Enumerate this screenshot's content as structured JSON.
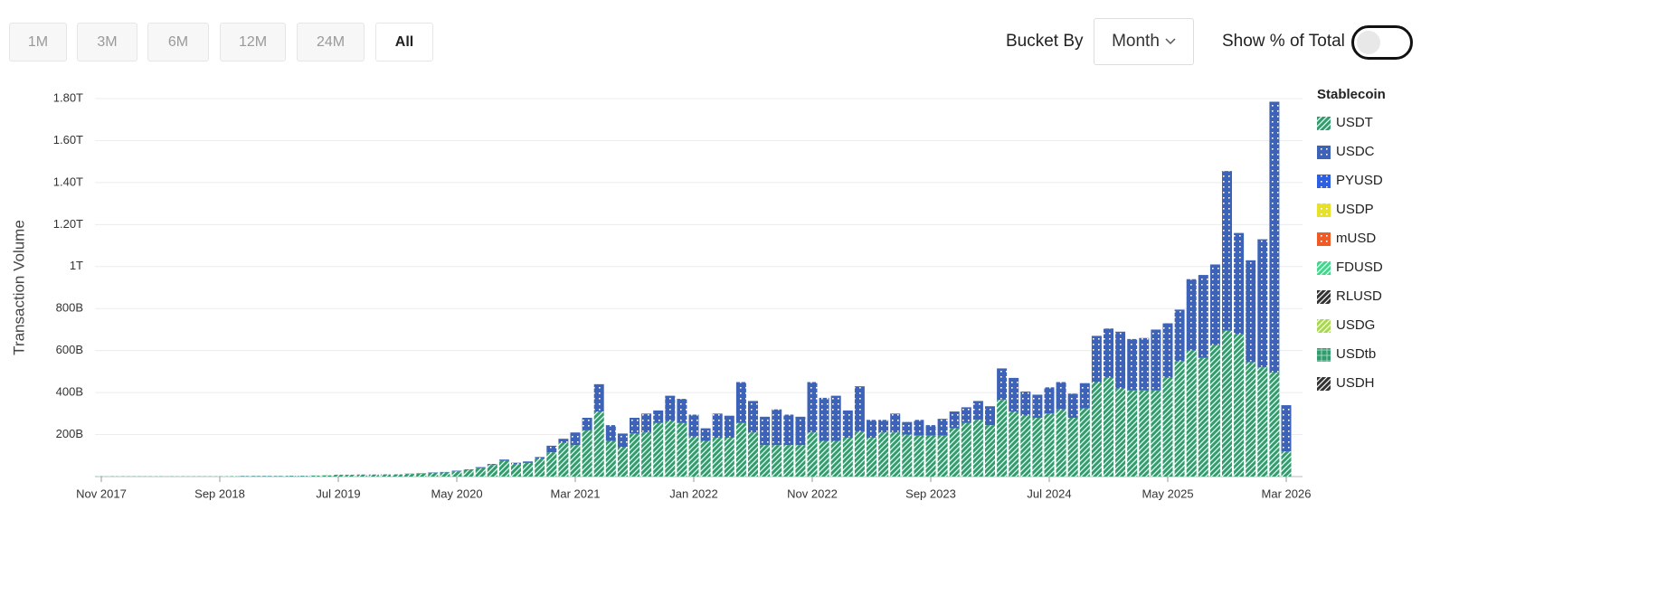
{
  "controls": {
    "ranges": [
      "1M",
      "3M",
      "6M",
      "12M",
      "24M",
      "All"
    ],
    "bucket_label": "Bucket By",
    "bucket_value": "Month",
    "percent_label": "Show % of Total"
  },
  "chart_data": {
    "type": "stacked-bar",
    "y_label": "Transaction Volume",
    "legend_title": "Stablecoin",
    "grid": true,
    "ylim": [
      0,
      1800
    ],
    "yticks": [
      {
        "value": 200,
        "label": "200B"
      },
      {
        "value": 400,
        "label": "400B"
      },
      {
        "value": 600,
        "label": "600B"
      },
      {
        "value": 800,
        "label": "800B"
      },
      {
        "value": 1000,
        "label": "1T"
      },
      {
        "value": 1200,
        "label": "1.20T"
      },
      {
        "value": 1400,
        "label": "1.40T"
      },
      {
        "value": 1600,
        "label": "1.60T"
      },
      {
        "value": 1800,
        "label": "1.80T"
      }
    ],
    "categories": [
      "Nov 2017",
      null,
      null,
      null,
      null,
      null,
      null,
      null,
      null,
      null,
      "Sep 2018",
      null,
      null,
      null,
      null,
      null,
      null,
      null,
      null,
      null,
      "Jul 2019",
      null,
      null,
      null,
      null,
      null,
      null,
      null,
      null,
      null,
      "May 2020",
      null,
      null,
      null,
      null,
      null,
      null,
      null,
      null,
      null,
      "Mar 2021",
      null,
      null,
      null,
      null,
      null,
      null,
      null,
      null,
      null,
      "Jan 2022",
      null,
      null,
      null,
      null,
      null,
      null,
      null,
      null,
      null,
      "Nov 2022",
      null,
      null,
      null,
      null,
      null,
      null,
      null,
      null,
      null,
      "Sep 2023",
      null,
      null,
      null,
      null,
      null,
      null,
      null,
      null,
      null,
      "Jul 2024",
      null,
      null,
      null,
      null,
      null,
      null,
      null,
      null,
      null,
      "May 2025",
      null,
      null,
      null,
      null,
      null,
      null,
      null,
      null,
      null,
      "Mar 2026"
    ],
    "series": [
      {
        "name": "USDT",
        "color": "#2f9d6c",
        "pattern": "hatch",
        "values": [
          1,
          1,
          1,
          1,
          1,
          1,
          1,
          1,
          1,
          1,
          1,
          2,
          2,
          2,
          2,
          2,
          3,
          3,
          4,
          5,
          8,
          8,
          9,
          9,
          10,
          10,
          12,
          14,
          18,
          20,
          25,
          30,
          40,
          55,
          75,
          60,
          65,
          85,
          115,
          160,
          150,
          220,
          310,
          170,
          140,
          205,
          210,
          255,
          265,
          255,
          190,
          170,
          185,
          185,
          255,
          210,
          150,
          150,
          150,
          150,
          210,
          170,
          170,
          185,
          215,
          185,
          210,
          210,
          200,
          195,
          195,
          195,
          230,
          255,
          270,
          245,
          365,
          310,
          290,
          280,
          300,
          320,
          280,
          325,
          450,
          470,
          420,
          410,
          410,
          410,
          470,
          550,
          600,
          565,
          625,
          695,
          680,
          545,
          520,
          495,
          120
        ]
      },
      {
        "name": "USDC",
        "color": "#3d63b9",
        "pattern": "dots",
        "values": [
          0,
          0,
          0,
          0,
          0,
          0,
          0,
          0,
          0,
          0,
          0,
          0,
          1,
          1,
          1,
          1,
          1,
          1,
          1,
          1,
          1,
          1,
          1,
          1,
          1,
          1,
          2,
          2,
          2,
          2,
          3,
          4,
          5,
          5,
          6,
          6,
          7,
          8,
          32,
          20,
          60,
          60,
          130,
          75,
          65,
          75,
          90,
          60,
          120,
          115,
          105,
          60,
          115,
          105,
          195,
          150,
          135,
          170,
          145,
          135,
          240,
          205,
          215,
          130,
          215,
          85,
          60,
          90,
          60,
          75,
          50,
          80,
          80,
          75,
          90,
          90,
          150,
          160,
          115,
          110,
          125,
          130,
          115,
          120,
          220,
          235,
          270,
          245,
          250,
          290,
          260,
          245,
          340,
          395,
          385,
          760,
          480,
          485,
          610,
          1290,
          220
        ]
      },
      {
        "name": "PYUSD",
        "color": "#2d5fe3",
        "pattern": "dots",
        "values": [
          0,
          0,
          0,
          0,
          0,
          0,
          0,
          0,
          0,
          0,
          0,
          0,
          0,
          0,
          0,
          0,
          0,
          0,
          0,
          0,
          0,
          0,
          0,
          0,
          0,
          0,
          0,
          0,
          0,
          0,
          0,
          0,
          0,
          0,
          0,
          0,
          0,
          0,
          0,
          0,
          0,
          0,
          0,
          0,
          0,
          0,
          0,
          0,
          0,
          0,
          0,
          0,
          0,
          0,
          0,
          0,
          0,
          0,
          0,
          0,
          0,
          0,
          0,
          0,
          0,
          0,
          0,
          0,
          0,
          0,
          0,
          0,
          0,
          0,
          0,
          0,
          0,
          0,
          0,
          0,
          0,
          0,
          0,
          0,
          0,
          0,
          0,
          0,
          0,
          0,
          0,
          0,
          0,
          0,
          0,
          0,
          0,
          0,
          0,
          0,
          0
        ]
      },
      {
        "name": "USDP",
        "color": "#e8e12a",
        "pattern": "dots",
        "values": [
          0,
          0,
          0,
          0,
          0,
          0,
          0,
          0,
          0,
          0,
          0,
          0,
          0,
          0,
          0,
          0,
          0,
          0,
          0,
          0,
          0,
          0,
          0,
          0,
          0,
          0,
          0,
          0,
          0,
          0,
          0,
          0,
          0,
          0,
          0,
          0,
          0,
          0,
          0,
          0,
          0,
          0,
          0,
          0,
          0,
          0,
          0,
          0,
          0,
          0,
          0,
          0,
          0,
          0,
          0,
          0,
          0,
          0,
          0,
          0,
          0,
          0,
          0,
          0,
          0,
          0,
          0,
          0,
          0,
          0,
          0,
          0,
          0,
          0,
          0,
          0,
          0,
          0,
          0,
          0,
          0,
          0,
          0,
          0,
          0,
          0,
          0,
          0,
          0,
          0,
          0,
          0,
          0,
          0,
          0,
          0,
          0,
          0,
          0,
          0,
          0
        ]
      },
      {
        "name": "mUSD",
        "color": "#ef5a25",
        "pattern": "dots",
        "values": [
          0,
          0,
          0,
          0,
          0,
          0,
          0,
          0,
          0,
          0,
          0,
          0,
          0,
          0,
          0,
          0,
          0,
          0,
          0,
          0,
          0,
          0,
          0,
          0,
          0,
          0,
          0,
          0,
          0,
          0,
          0,
          0,
          0,
          0,
          0,
          0,
          0,
          0,
          0,
          0,
          0,
          0,
          0,
          0,
          0,
          0,
          0,
          0,
          0,
          0,
          0,
          0,
          0,
          0,
          0,
          0,
          0,
          0,
          0,
          0,
          0,
          0,
          0,
          0,
          0,
          0,
          0,
          0,
          0,
          0,
          0,
          0,
          0,
          0,
          0,
          0,
          0,
          0,
          0,
          0,
          0,
          0,
          0,
          0,
          0,
          0,
          0,
          0,
          0,
          0,
          0,
          0,
          0,
          0,
          0,
          0,
          0,
          0,
          0,
          0,
          0
        ]
      },
      {
        "name": "FDUSD",
        "color": "#3dd888",
        "pattern": "hatch",
        "values": [
          0,
          0,
          0,
          0,
          0,
          0,
          0,
          0,
          0,
          0,
          0,
          0,
          0,
          0,
          0,
          0,
          0,
          0,
          0,
          0,
          0,
          0,
          0,
          0,
          0,
          0,
          0,
          0,
          0,
          0,
          0,
          0,
          0,
          0,
          0,
          0,
          0,
          0,
          0,
          0,
          0,
          0,
          0,
          0,
          0,
          0,
          0,
          0,
          0,
          0,
          0,
          0,
          0,
          0,
          0,
          0,
          0,
          0,
          0,
          0,
          0,
          0,
          0,
          0,
          0,
          0,
          0,
          0,
          0,
          0,
          0,
          0,
          0,
          0,
          0,
          0,
          0,
          0,
          0,
          0,
          0,
          0,
          0,
          0,
          0,
          0,
          0,
          0,
          0,
          0,
          0,
          0,
          0,
          0,
          0,
          0,
          0,
          0,
          0,
          0,
          0
        ]
      },
      {
        "name": "RLUSD",
        "color": "#333333",
        "pattern": "hatch",
        "values": [
          0,
          0,
          0,
          0,
          0,
          0,
          0,
          0,
          0,
          0,
          0,
          0,
          0,
          0,
          0,
          0,
          0,
          0,
          0,
          0,
          0,
          0,
          0,
          0,
          0,
          0,
          0,
          0,
          0,
          0,
          0,
          0,
          0,
          0,
          0,
          0,
          0,
          0,
          0,
          0,
          0,
          0,
          0,
          0,
          0,
          0,
          0,
          0,
          0,
          0,
          0,
          0,
          0,
          0,
          0,
          0,
          0,
          0,
          0,
          0,
          0,
          0,
          0,
          0,
          0,
          0,
          0,
          0,
          0,
          0,
          0,
          0,
          0,
          0,
          0,
          0,
          0,
          0,
          0,
          0,
          0,
          0,
          0,
          0,
          0,
          0,
          0,
          0,
          0,
          0,
          0,
          0,
          0,
          0,
          0,
          0,
          0,
          0,
          0,
          0,
          0
        ]
      },
      {
        "name": "USDG",
        "color": "#a7d94b",
        "pattern": "hatch",
        "values": [
          0,
          0,
          0,
          0,
          0,
          0,
          0,
          0,
          0,
          0,
          0,
          0,
          0,
          0,
          0,
          0,
          0,
          0,
          0,
          0,
          0,
          0,
          0,
          0,
          0,
          0,
          0,
          0,
          0,
          0,
          0,
          0,
          0,
          0,
          0,
          0,
          0,
          0,
          0,
          0,
          0,
          0,
          0,
          0,
          0,
          0,
          0,
          0,
          0,
          0,
          0,
          0,
          0,
          0,
          0,
          0,
          0,
          0,
          0,
          0,
          0,
          0,
          0,
          0,
          0,
          0,
          0,
          0,
          0,
          0,
          0,
          0,
          0,
          0,
          0,
          0,
          0,
          0,
          0,
          0,
          0,
          0,
          0,
          0,
          0,
          0,
          0,
          0,
          0,
          0,
          0,
          0,
          0,
          0,
          0,
          0,
          0,
          0,
          0,
          0,
          0
        ]
      },
      {
        "name": "USDtb",
        "color": "#2f9d6c",
        "pattern": "grid",
        "values": [
          0,
          0,
          0,
          0,
          0,
          0,
          0,
          0,
          0,
          0,
          0,
          0,
          0,
          0,
          0,
          0,
          0,
          0,
          0,
          0,
          0,
          0,
          0,
          0,
          0,
          0,
          0,
          0,
          0,
          0,
          0,
          0,
          0,
          0,
          0,
          0,
          0,
          0,
          0,
          0,
          0,
          0,
          0,
          0,
          0,
          0,
          0,
          0,
          0,
          0,
          0,
          0,
          0,
          0,
          0,
          0,
          0,
          0,
          0,
          0,
          0,
          0,
          0,
          0,
          0,
          0,
          0,
          0,
          0,
          0,
          0,
          0,
          0,
          0,
          0,
          0,
          0,
          0,
          0,
          0,
          0,
          0,
          0,
          0,
          0,
          0,
          0,
          0,
          0,
          0,
          0,
          0,
          0,
          0,
          0,
          0,
          0,
          0,
          0,
          0,
          0
        ]
      },
      {
        "name": "USDH",
        "color": "#333333",
        "pattern": "hatch",
        "values": [
          0,
          0,
          0,
          0,
          0,
          0,
          0,
          0,
          0,
          0,
          0,
          0,
          0,
          0,
          0,
          0,
          0,
          0,
          0,
          0,
          0,
          0,
          0,
          0,
          0,
          0,
          0,
          0,
          0,
          0,
          0,
          0,
          0,
          0,
          0,
          0,
          0,
          0,
          0,
          0,
          0,
          0,
          0,
          0,
          0,
          0,
          0,
          0,
          0,
          0,
          0,
          0,
          0,
          0,
          0,
          0,
          0,
          0,
          0,
          0,
          0,
          0,
          0,
          0,
          0,
          0,
          0,
          0,
          0,
          0,
          0,
          0,
          0,
          0,
          0,
          0,
          0,
          0,
          0,
          0,
          0,
          0,
          0,
          0,
          0,
          0,
          0,
          0,
          0,
          0,
          0,
          0,
          0,
          0,
          0,
          0,
          0,
          0,
          0,
          0,
          0
        ]
      }
    ]
  }
}
